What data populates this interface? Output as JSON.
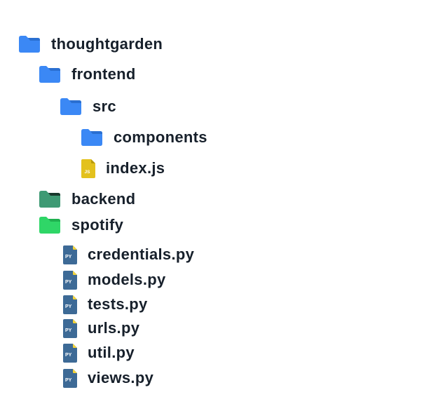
{
  "tree": {
    "root": {
      "label": "thoughtgarden",
      "color": "#3b88f5"
    },
    "frontend": {
      "label": "frontend",
      "color": "#3b88f5"
    },
    "src": {
      "label": "src",
      "color": "#3b88f5"
    },
    "components": {
      "label": "components",
      "color": "#3b88f5"
    },
    "index_js": {
      "label": "index.js",
      "badge": "JS",
      "color": "#e3c11d"
    },
    "backend": {
      "label": "backend",
      "color": "#3e9a74"
    },
    "spotify": {
      "label": "spotify",
      "color": "#2fd667"
    },
    "spotify_files": [
      {
        "label": "credentials.py",
        "badge": "PY"
      },
      {
        "label": "models.py",
        "badge": "PY"
      },
      {
        "label": "tests.py",
        "badge": "PY"
      },
      {
        "label": "urls.py",
        "badge": "PY"
      },
      {
        "label": "util.py",
        "badge": "PY"
      },
      {
        "label": "views.py",
        "badge": "PY"
      }
    ],
    "py_icon_color": "#3d6a96",
    "py_corner_color": "#f2d33a"
  }
}
